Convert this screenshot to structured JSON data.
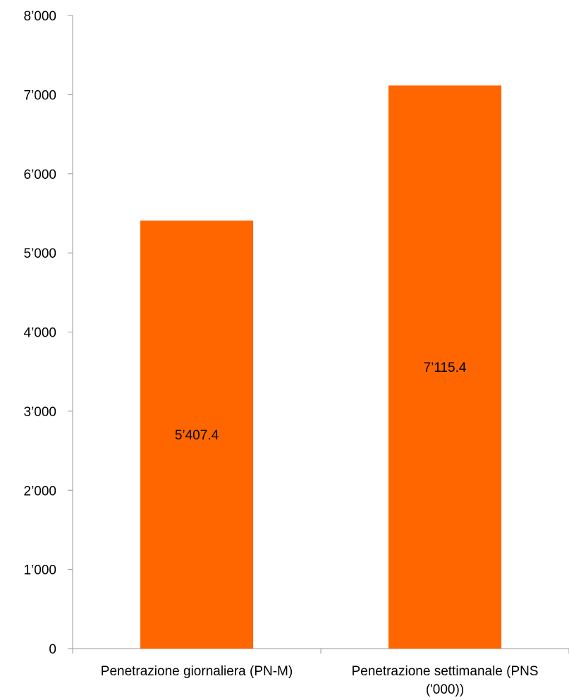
{
  "chart_data": {
    "type": "bar",
    "categories": [
      [
        "Penetrazione giornaliera (PN-M)"
      ],
      [
        "Penetrazione settimanale (PNS",
        "('000))"
      ]
    ],
    "values": [
      5407.4,
      7115.4
    ],
    "data_labels": [
      "5’407.4",
      "7’115.4"
    ],
    "ylim": [
      0,
      8000
    ],
    "yticks": [
      0,
      1000,
      2000,
      3000,
      4000,
      5000,
      6000,
      7000,
      8000
    ],
    "ytick_labels": [
      "0",
      "1’000",
      "2’000",
      "3’000",
      "4’000",
      "5’000",
      "6’000",
      "7’000",
      "8’000"
    ],
    "grid": false,
    "legend": "none",
    "bar_color": "#ff6600",
    "axis_color": "#999999"
  }
}
